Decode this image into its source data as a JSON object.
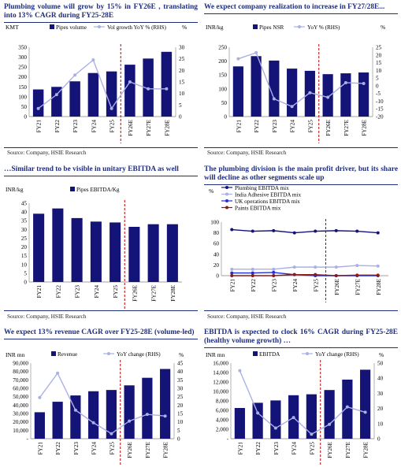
{
  "colors": {
    "bar": "#141478",
    "line": "#aab0e6",
    "divider": "#c00000",
    "title": "#1f2d80"
  },
  "panels": [
    {
      "title": "Plumbing volume will grow by 15% in FY26E , translating into 13% CAGR during FY25-28E",
      "source": "Source: Company, HSIE Research"
    },
    {
      "title": "We expect company realization to increase in FY27/28E...",
      "source": "Source: Company, HSIE Research"
    },
    {
      "title": "…Similar trend to be visible in unitary EBITDA as well",
      "source": "Source: Company, HSIE Research"
    },
    {
      "title": "The plumbing division is the main profit driver, but its share will decline as other segments scale up",
      "source": "Source: Company, HSIE Research"
    },
    {
      "title": "We expect 13% revenue CAGR over FY25-28E (volume-led)",
      "source": ""
    },
    {
      "title": "EBITDA is expected to clock 16% CAGR during FY25-28E (healthy volume growth) …",
      "source": ""
    }
  ],
  "chart_data": [
    {
      "type": "bar",
      "categories": [
        "FY21",
        "FY22",
        "FY23",
        "FY24",
        "FY25",
        "FY26E",
        "FY27E",
        "FY28E"
      ],
      "ylabel": "KMT",
      "ylabel2": "%",
      "ylim": [
        0,
        350
      ],
      "yticks": [
        0,
        50,
        100,
        150,
        200,
        250,
        300,
        350
      ],
      "y2lim": [
        0,
        30
      ],
      "y2ticks": [
        0,
        5,
        10,
        15,
        20,
        25,
        30
      ],
      "series": [
        {
          "name": "Pipes volume",
          "kind": "bar",
          "axis": "left",
          "values": [
            137,
            150,
            178,
            220,
            228,
            262,
            293,
            327
          ]
        },
        {
          "name": "Vol growth YoY % (RHS)",
          "kind": "line",
          "axis": "right",
          "values": [
            3.5,
            9.5,
            18,
            24.5,
            3.5,
            15,
            12,
            12
          ]
        }
      ],
      "divider_after": 4
    },
    {
      "type": "bar",
      "categories": [
        "FY21",
        "FY22",
        "FY23",
        "FY24",
        "FY25",
        "FY26E",
        "FY27E",
        "FY28E"
      ],
      "ylabel": "INR/kg",
      "ylabel2": "%",
      "ylim": [
        0,
        250
      ],
      "yticks": [
        0,
        50,
        100,
        150,
        200,
        250
      ],
      "y2lim": [
        -20,
        25
      ],
      "y2ticks": [
        -20,
        -15,
        -10,
        -5,
        0,
        5,
        10,
        15,
        20,
        25
      ],
      "series": [
        {
          "name": "Pipes NSR",
          "kind": "bar",
          "axis": "left",
          "values": [
            181,
            218,
            202,
            173,
            165,
            153,
            156,
            159
          ]
        },
        {
          "name": "YoY % (RHS)",
          "kind": "line",
          "axis": "right",
          "values": [
            17.5,
            21.5,
            -8.5,
            -13.5,
            -4.5,
            -7.5,
            2,
            1.5
          ]
        }
      ],
      "divider_after": 4
    },
    {
      "type": "bar",
      "categories": [
        "FY21",
        "FY22",
        "FY23",
        "FY24",
        "FY25",
        "FY26E",
        "FY27E",
        "FY28E"
      ],
      "ylabel": "INR/kg",
      "ylim": [
        0,
        45
      ],
      "yticks": [
        0,
        5,
        10,
        15,
        20,
        25,
        30,
        35,
        40,
        45
      ],
      "series": [
        {
          "name": "Pipes EBITDA/Kg",
          "kind": "bar",
          "axis": "left",
          "values": [
            39,
            42,
            36.5,
            34.5,
            34,
            31.5,
            33,
            33
          ]
        }
      ],
      "divider_after": 4
    },
    {
      "type": "line",
      "categories": [
        "FY21",
        "FY22",
        "FY23",
        "FY24",
        "FY25",
        "FY26E",
        "FY27E",
        "FY28E"
      ],
      "ylabel": "%",
      "ylim": [
        0,
        100
      ],
      "yticks": [
        0,
        20,
        40,
        60,
        80,
        100
      ],
      "series": [
        {
          "name": "Plumbing EBITDA mix",
          "color": "#141478",
          "values": [
            86,
            83,
            84,
            80,
            83,
            84,
            83,
            80
          ]
        },
        {
          "name": "India Adhesive EBITDA mix",
          "color": "#aab0e6",
          "values": [
            12,
            12,
            12,
            16,
            16,
            16,
            19,
            18
          ]
        },
        {
          "name": "UK operations EBITDA mix",
          "color": "#2030e0",
          "values": [
            5,
            5,
            6,
            2,
            0,
            0,
            0,
            0
          ]
        },
        {
          "name": "Paints EBITDA mix",
          "color": "#8b1a1a",
          "values": [
            0,
            0,
            0,
            2,
            2,
            0,
            1,
            1
          ]
        }
      ],
      "divider_after": 4
    },
    {
      "type": "bar",
      "categories": [
        "FY21",
        "FY22",
        "FY23",
        "FY24",
        "FY25",
        "FY26E",
        "FY27E",
        "FY28E"
      ],
      "ylabel": "INR mn",
      "ylabel2": "%",
      "ylim": [
        0,
        90000
      ],
      "yticks": [
        0,
        10000,
        20000,
        30000,
        40000,
        50000,
        60000,
        70000,
        80000,
        90000
      ],
      "ytick_labels": [
        "-",
        "10,000",
        "20,000",
        "30,000",
        "40,000",
        "50,000",
        "60,000",
        "70,000",
        "80,000",
        "90,000"
      ],
      "y2lim": [
        0,
        45
      ],
      "y2ticks": [
        0,
        5,
        10,
        15,
        20,
        25,
        30,
        35,
        40,
        45
      ],
      "series": [
        {
          "name": "Revenue",
          "kind": "bar",
          "axis": "left",
          "values": [
            31500,
            44000,
            51500,
            56500,
            58000,
            63500,
            72500,
            83000
          ]
        },
        {
          "name": "YoY change (RHS)",
          "kind": "line",
          "axis": "right",
          "values": [
            24.5,
            39,
            17,
            9.5,
            3,
            10.5,
            14.5,
            13.5
          ]
        }
      ],
      "divider_after": 4
    },
    {
      "type": "bar",
      "categories": [
        "FY21",
        "FY22",
        "FY23",
        "FY24",
        "FY25",
        "FY26E",
        "FY27E",
        "FY28E"
      ],
      "ylabel": "INR mn",
      "ylabel2": "%",
      "ylim": [
        0,
        16000
      ],
      "yticks": [
        0,
        2000,
        4000,
        6000,
        8000,
        10000,
        12000,
        14000,
        16000
      ],
      "ytick_labels": [
        "-",
        "2,000",
        "4,000",
        "6,000",
        "8,000",
        "10,000",
        "12,000",
        "14,000",
        "16,000"
      ],
      "y2lim": [
        0,
        50
      ],
      "y2ticks": [
        0,
        10,
        20,
        30,
        40,
        50
      ],
      "series": [
        {
          "name": "EBITDA",
          "kind": "bar",
          "axis": "left",
          "values": [
            6500,
            7600,
            8100,
            9200,
            9400,
            10300,
            12500,
            14600
          ]
        },
        {
          "name": "YoY change (RHS)",
          "kind": "line",
          "axis": "right",
          "values": [
            45,
            17,
            7,
            14,
            3,
            9.5,
            21,
            17.5
          ]
        }
      ],
      "divider_after": 4
    }
  ]
}
